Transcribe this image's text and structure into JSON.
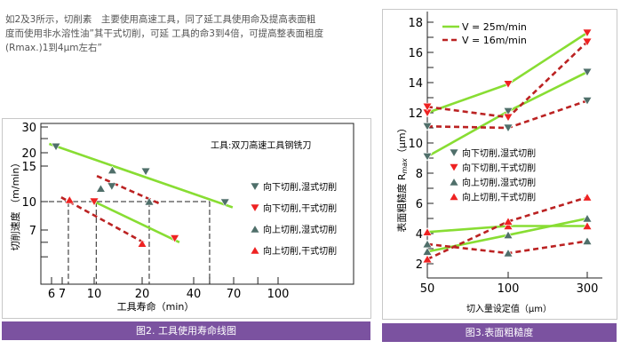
{
  "intro": {
    "lines": [
      "如2及3所示，切削素　主要使用高速工具，同了延工具使用命及提高表面粗",
      "度而使用非水溶性油”其干式切削，可延 工具的命3到4倍，可提高整表面粗度",
      "(Rmax.)1到4μm左右”"
    ]
  },
  "colors": {
    "caption_bg": "#7b52a0",
    "green_line": "#88dd33",
    "red_dashed": "#bb2222",
    "wet_marker": "#4f6f6a",
    "dry_marker": "#ee2222"
  },
  "chart_data": [
    {
      "type": "line",
      "caption": "图2. 工具使用寿命线图",
      "title": "工具:双刀高速工具钢铣刀",
      "xlabel": "工具寿命（min）",
      "ylabel": "切削速度 （m/min）",
      "xscale": "log",
      "yscale": "log",
      "xticks": [
        "6",
        "7",
        "10",
        "20",
        "40",
        "70",
        "100"
      ],
      "yticks": [
        "30",
        "20",
        "15",
        "10",
        "7"
      ],
      "legend": [
        {
          "label": "向下切削,湿式切削",
          "marker": "down-triangle",
          "color": "#4f6f6a"
        },
        {
          "label": "向下切削,干式切削",
          "marker": "down-triangle",
          "color": "#ee2222"
        },
        {
          "label": "向上切削,湿式切削",
          "marker": "up-triangle",
          "color": "#4f6f6a"
        },
        {
          "label": "向上切削,干式切削",
          "marker": "up-triangle",
          "color": "#ee2222"
        }
      ],
      "points": [
        {
          "group": 0,
          "x": [
            6.4,
            21,
            12.9,
            62
          ],
          "y": [
            22,
            14.1,
            11.9,
            9.9
          ]
        },
        {
          "group": 1,
          "x": [
            10,
            31
          ],
          "y": [
            10,
            6.3
          ]
        },
        {
          "group": 2,
          "x": [
            13,
            11,
            22
          ],
          "y": [
            14.3,
            11.6,
            10
          ]
        },
        {
          "group": 3,
          "x": [
            7.6,
            20
          ],
          "y": [
            10.2,
            5.9
          ]
        }
      ],
      "lines": [
        {
          "style": "solid-green",
          "x": [
            5.8,
            69
          ],
          "y": [
            23,
            9.3
          ]
        },
        {
          "style": "solid-green",
          "x": [
            10,
            33
          ],
          "y": [
            10,
            6.0
          ]
        },
        {
          "style": "dashed-red",
          "x": [
            6.9,
            21
          ],
          "y": [
            10.5,
            5.9
          ]
        },
        {
          "style": "dashed-red",
          "x": [
            10.4,
            25
          ],
          "y": [
            13.4,
            9.8
          ]
        }
      ],
      "reference": {
        "y": 10,
        "x": [
          7.5,
          10.3,
          22,
          50
        ]
      }
    },
    {
      "type": "line",
      "caption": "图3.表面粗糙度",
      "xlabel": "切入量设定值（μm）",
      "ylabel": "表面粗糙度 R",
      "ylabel_sub": "max",
      "ylabel_unit": "（μm）",
      "categories": [
        "50",
        "100",
        "300"
      ],
      "ylim": [
        1,
        18.7
      ],
      "yticks": [
        "2",
        "4",
        "6",
        "8",
        "10",
        "12",
        "14",
        "16",
        "18"
      ],
      "line_legend": [
        {
          "label": "V = 25m/min",
          "style": "solid-green"
        },
        {
          "label": "V = 16m/min",
          "style": "dashed-red"
        }
      ],
      "legend": [
        {
          "label": "向下切削,湿式切削",
          "marker": "down-triangle",
          "color": "#4f6f6a"
        },
        {
          "label": "向下切削,干式切削",
          "marker": "down-triangle",
          "color": "#ee2222"
        },
        {
          "label": "向上切削,湿式切削",
          "marker": "up-triangle",
          "color": "#4f6f6a"
        },
        {
          "label": "向上切削,干式切削",
          "marker": "up-triangle",
          "color": "#ee2222"
        }
      ],
      "series": [
        {
          "speed": "V = 25m/min",
          "style": "solid-green",
          "group": 1,
          "values": [
            12,
            13.9,
            17.3
          ]
        },
        {
          "speed": "V = 25m/min",
          "style": "solid-green",
          "group": 0,
          "values": [
            9.1,
            12.1,
            14.7
          ]
        },
        {
          "speed": "V = 25m/min",
          "style": "solid-green",
          "group": 3,
          "values": [
            4.1,
            4.5,
            4.5
          ]
        },
        {
          "speed": "V = 25m/min",
          "style": "solid-green",
          "group": 2,
          "values": [
            2.8,
            3.9,
            5.0
          ]
        },
        {
          "speed": "V = 16m/min",
          "style": "dashed-red",
          "group": 1,
          "values": [
            12.4,
            11.7,
            16.7
          ]
        },
        {
          "speed": "V = 16m/min",
          "style": "dashed-red",
          "group": 0,
          "values": [
            11.1,
            11.0,
            12.8
          ]
        },
        {
          "speed": "V = 16m/min",
          "style": "dashed-red",
          "group": 3,
          "values": [
            2.3,
            4.8,
            6.4
          ]
        },
        {
          "speed": "V = 16m/min",
          "style": "dashed-red",
          "group": 2,
          "values": [
            3.3,
            2.7,
            3.5
          ]
        }
      ]
    }
  ]
}
